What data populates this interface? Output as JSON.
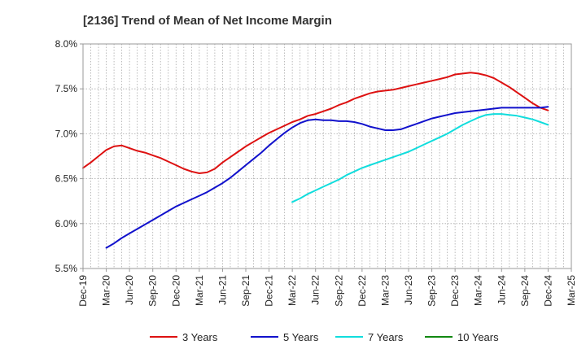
{
  "chart_data": {
    "type": "line",
    "title": "[2136]  Trend of Mean of Net Income Margin",
    "xlabel": "",
    "ylabel": "",
    "y_unit": "%",
    "ylim": [
      5.5,
      8.0
    ],
    "y_ticks": [
      "5.5%",
      "6.0%",
      "6.5%",
      "7.0%",
      "7.5%",
      "8.0%"
    ],
    "x_ticks": [
      "Dec-19",
      "Mar-20",
      "Jun-20",
      "Sep-20",
      "Dec-20",
      "Mar-21",
      "Jun-21",
      "Sep-21",
      "Dec-21",
      "Mar-22",
      "Jun-22",
      "Sep-22",
      "Dec-22",
      "Mar-23",
      "Jun-23",
      "Sep-23",
      "Dec-23",
      "Mar-24",
      "Jun-24",
      "Sep-24",
      "Dec-24",
      "Mar-25"
    ],
    "grid": true,
    "legend_position": "bottom",
    "series": [
      {
        "name": "3 Years",
        "color": "#dd1111",
        "x": [
          "Dec-19",
          "Jan-20",
          "Feb-20",
          "Mar-20",
          "Apr-20",
          "May-20",
          "Jun-20",
          "Jul-20",
          "Aug-20",
          "Sep-20",
          "Oct-20",
          "Nov-20",
          "Dec-20",
          "Jan-21",
          "Feb-21",
          "Mar-21",
          "Apr-21",
          "May-21",
          "Jun-21",
          "Jul-21",
          "Aug-21",
          "Sep-21",
          "Oct-21",
          "Nov-21",
          "Dec-21",
          "Jan-22",
          "Feb-22",
          "Mar-22",
          "Apr-22",
          "May-22",
          "Jun-22",
          "Jul-22",
          "Aug-22",
          "Sep-22",
          "Oct-22",
          "Nov-22",
          "Dec-22",
          "Jan-23",
          "Feb-23",
          "Mar-23",
          "Apr-23",
          "May-23",
          "Jun-23",
          "Jul-23",
          "Aug-23",
          "Sep-23",
          "Oct-23",
          "Nov-23",
          "Dec-23",
          "Jan-24",
          "Feb-24",
          "Mar-24",
          "Apr-24",
          "May-24",
          "Jun-24",
          "Jul-24",
          "Aug-24",
          "Sep-24",
          "Oct-24",
          "Nov-24",
          "Dec-24"
        ],
        "values": [
          6.62,
          6.68,
          6.75,
          6.82,
          6.86,
          6.87,
          6.84,
          6.81,
          6.79,
          6.76,
          6.73,
          6.69,
          6.65,
          6.61,
          6.58,
          6.56,
          6.57,
          6.61,
          6.68,
          6.74,
          6.8,
          6.86,
          6.91,
          6.96,
          7.01,
          7.05,
          7.09,
          7.13,
          7.16,
          7.2,
          7.22,
          7.25,
          7.28,
          7.32,
          7.35,
          7.39,
          7.42,
          7.45,
          7.47,
          7.48,
          7.49,
          7.51,
          7.53,
          7.55,
          7.57,
          7.59,
          7.61,
          7.63,
          7.66,
          7.67,
          7.68,
          7.67,
          7.65,
          7.62,
          7.57,
          7.52,
          7.46,
          7.4,
          7.34,
          7.29,
          7.26
        ]
      },
      {
        "name": "5 Years",
        "color": "#1111cc",
        "x": [
          "Mar-20",
          "Apr-20",
          "May-20",
          "Jun-20",
          "Jul-20",
          "Aug-20",
          "Sep-20",
          "Oct-20",
          "Nov-20",
          "Dec-20",
          "Jan-21",
          "Feb-21",
          "Mar-21",
          "Apr-21",
          "May-21",
          "Jun-21",
          "Jul-21",
          "Aug-21",
          "Sep-21",
          "Oct-21",
          "Nov-21",
          "Dec-21",
          "Jan-22",
          "Feb-22",
          "Mar-22",
          "Apr-22",
          "May-22",
          "Jun-22",
          "Jul-22",
          "Aug-22",
          "Sep-22",
          "Oct-22",
          "Nov-22",
          "Dec-22",
          "Jan-23",
          "Feb-23",
          "Mar-23",
          "Apr-23",
          "May-23",
          "Jun-23",
          "Jul-23",
          "Aug-23",
          "Sep-23",
          "Oct-23",
          "Nov-23",
          "Dec-23",
          "Jan-24",
          "Feb-24",
          "Mar-24",
          "Apr-24",
          "May-24",
          "Jun-24",
          "Jul-24",
          "Aug-24",
          "Sep-24",
          "Oct-24",
          "Nov-24",
          "Dec-24"
        ],
        "values": [
          5.73,
          5.78,
          5.84,
          5.89,
          5.94,
          5.99,
          6.04,
          6.09,
          6.14,
          6.19,
          6.23,
          6.27,
          6.31,
          6.35,
          6.4,
          6.45,
          6.51,
          6.58,
          6.65,
          6.72,
          6.79,
          6.87,
          6.94,
          7.01,
          7.07,
          7.12,
          7.15,
          7.16,
          7.15,
          7.15,
          7.14,
          7.14,
          7.13,
          7.11,
          7.08,
          7.06,
          7.04,
          7.04,
          7.05,
          7.08,
          7.11,
          7.14,
          7.17,
          7.19,
          7.21,
          7.23,
          7.24,
          7.25,
          7.26,
          7.27,
          7.28,
          7.29,
          7.29,
          7.29,
          7.29,
          7.29,
          7.29,
          7.3
        ]
      },
      {
        "name": "7 Years",
        "color": "#11dddd",
        "x": [
          "Mar-22",
          "Apr-22",
          "May-22",
          "Jun-22",
          "Jul-22",
          "Aug-22",
          "Sep-22",
          "Oct-22",
          "Nov-22",
          "Dec-22",
          "Jan-23",
          "Feb-23",
          "Mar-23",
          "Apr-23",
          "May-23",
          "Jun-23",
          "Jul-23",
          "Aug-23",
          "Sep-23",
          "Oct-23",
          "Nov-23",
          "Dec-23",
          "Jan-24",
          "Feb-24",
          "Mar-24",
          "Apr-24",
          "May-24",
          "Jun-24",
          "Jul-24",
          "Aug-24",
          "Sep-24",
          "Oct-24",
          "Nov-24",
          "Dec-24"
        ],
        "values": [
          6.24,
          6.28,
          6.33,
          6.37,
          6.41,
          6.45,
          6.49,
          6.54,
          6.58,
          6.62,
          6.65,
          6.68,
          6.71,
          6.74,
          6.77,
          6.8,
          6.84,
          6.88,
          6.92,
          6.96,
          7.0,
          7.05,
          7.1,
          7.14,
          7.18,
          7.21,
          7.22,
          7.22,
          7.21,
          7.2,
          7.18,
          7.16,
          7.13,
          7.1
        ]
      },
      {
        "name": "10 Years",
        "color": "#118811",
        "x": [],
        "values": []
      }
    ]
  }
}
